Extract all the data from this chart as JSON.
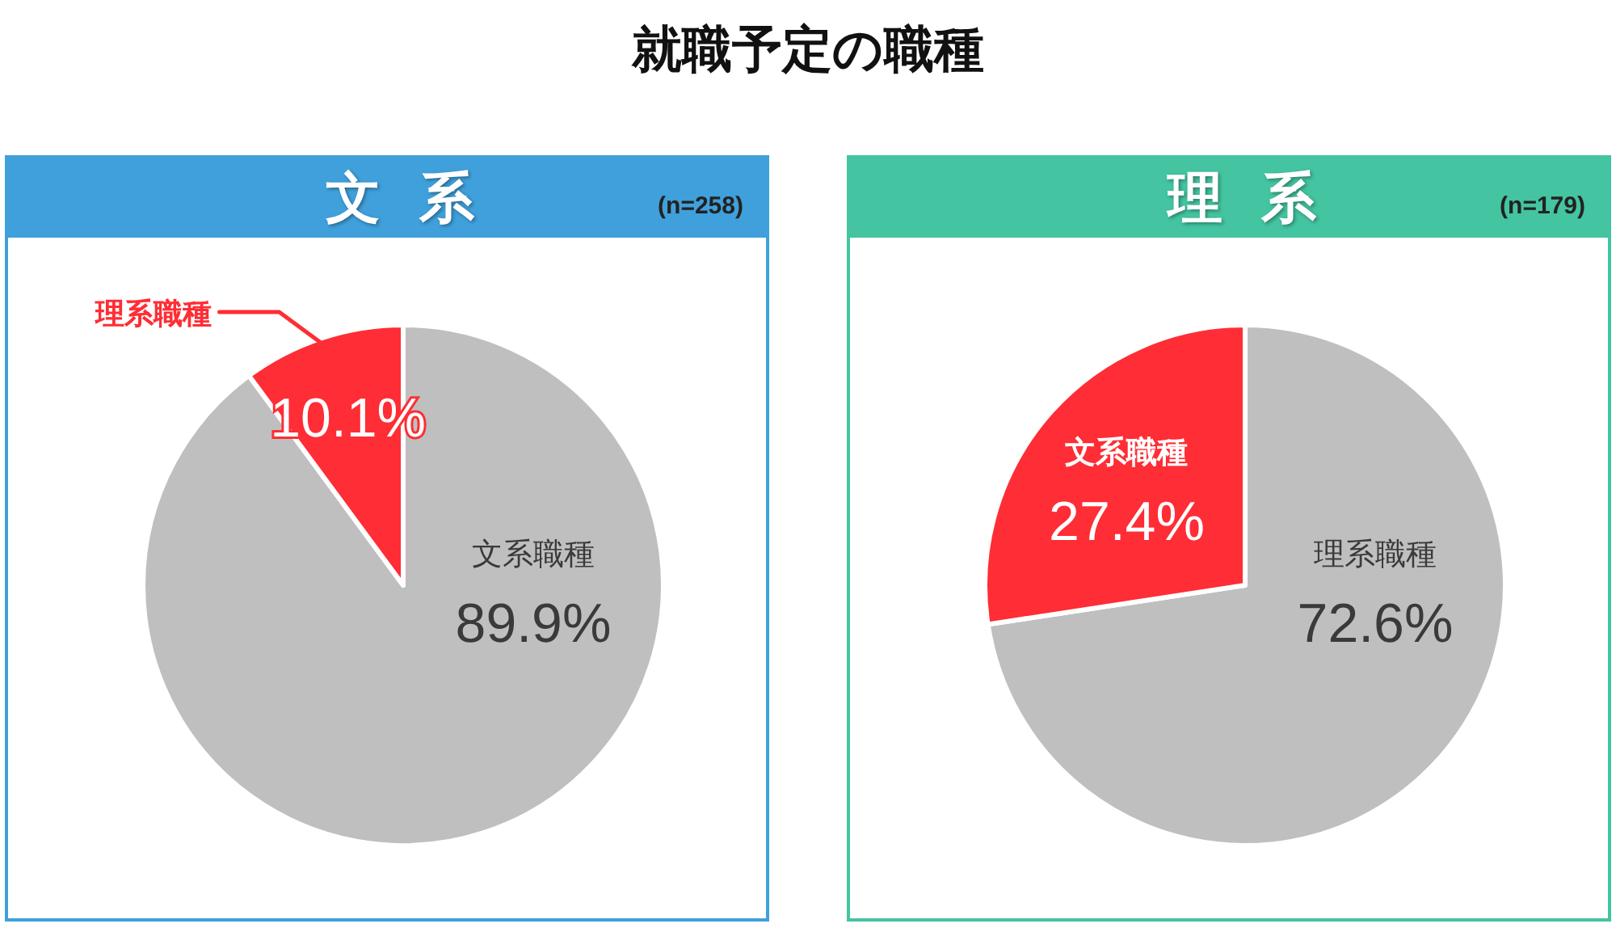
{
  "chart_data": [
    {
      "type": "other",
      "title": "就職予定の職種"
    },
    {
      "type": "pie",
      "title": "文系",
      "subtitle": "(n=258)",
      "categories": [
        "文系職種",
        "理系職種"
      ],
      "values": [
        89.9,
        10.1
      ],
      "colors": [
        "#bfbfbf",
        "#ff2d35"
      ],
      "value_labels": [
        "89.9%",
        "10.1%"
      ]
    },
    {
      "type": "pie",
      "title": "理系",
      "subtitle": "(n=179)",
      "categories": [
        "理系職種",
        "文系職種"
      ],
      "values": [
        72.6,
        27.4
      ],
      "colors": [
        "#bfbfbf",
        "#ff2d35"
      ],
      "value_labels": [
        "72.6%",
        "27.4%"
      ]
    }
  ]
}
